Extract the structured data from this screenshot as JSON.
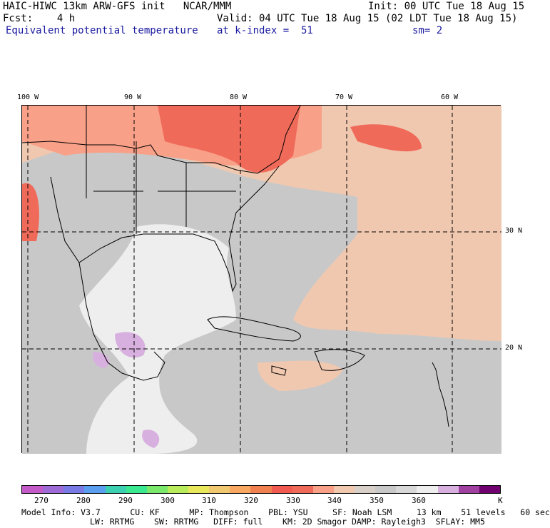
{
  "header": {
    "line1_left": "HAIC-HIWC 13km ARW-GFS init   NCAR/MMM",
    "line1_right": "Init: 00 UTC Tue 18 Aug 15",
    "line2_left": "Fcst:    4 h",
    "line2_right": "Valid: 04 UTC Tue 18 Aug 15 (02 LDT Tue 18 Aug 15)",
    "line3_left": "Equivalent potential temperature",
    "line3_mid": "at k-index =  51",
    "line3_right": "sm= 2"
  },
  "axes": {
    "lon_labels": [
      "100 W",
      "90 W",
      "80 W",
      "70 W",
      "60 W"
    ],
    "lat_labels": [
      "30 N",
      "20 N"
    ]
  },
  "colorbar": {
    "colors": [
      "#c45ac8",
      "#9e6ad6",
      "#7a7ae6",
      "#5a9ef0",
      "#3ad0b0",
      "#3ae890",
      "#7ae86a",
      "#b8ec5a",
      "#e8e85a",
      "#f0c870",
      "#f8a860",
      "#f08050",
      "#f05a50",
      "#f06a5a",
      "#f8a088",
      "#f0c8b0",
      "#d8d0c8",
      "#c8c8c8",
      "#d8d8d8",
      "#eeeeee",
      "#d8b0e0",
      "#a040a0",
      "#700070"
    ],
    "ticks": [
      "270",
      "280",
      "290",
      "300",
      "310",
      "320",
      "330",
      "340",
      "350",
      "360"
    ],
    "unit": "K"
  },
  "footer": {
    "line1": "Model Info: V3.7      CU: KF      MP: Thompson    PBL: YSU     SF: Noah LSM     13 km    51 levels   60 sec",
    "line2": "LW: RRTMG    SW: RRTMG   DIFF: full    KM: 2D Smagor DAMP: Rayleigh3  SFLAY: MM5"
  }
}
